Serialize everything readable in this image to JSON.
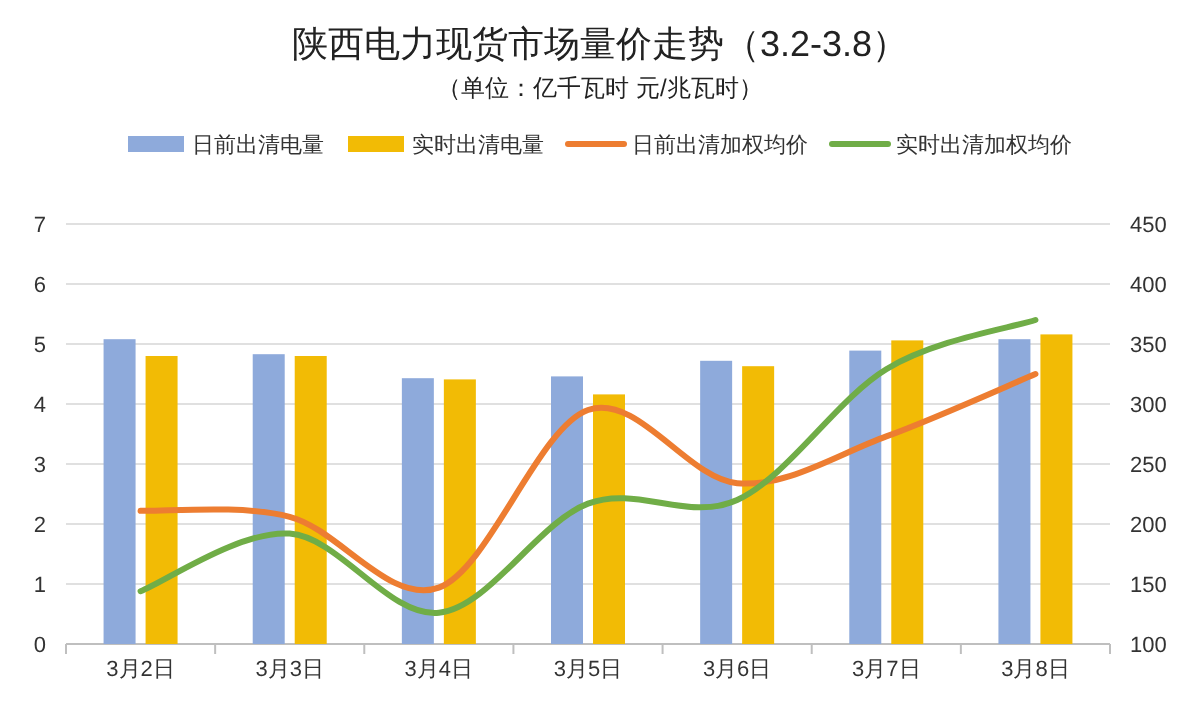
{
  "chart_data": {
    "type": "bar",
    "title": "陕西电力现货市场量价走势（3.2-3.8）",
    "subtitle": "（单位：亿千瓦时 元/兆瓦时）",
    "categories": [
      "3月2日",
      "3月3日",
      "3月4日",
      "3月5日",
      "3月6日",
      "3月7日",
      "3月8日"
    ],
    "series": [
      {
        "name": "日前出清电量",
        "color": "#8eaadb",
        "values": [
          5.08,
          4.83,
          4.43,
          4.46,
          4.72,
          4.89,
          5.08
        ]
      },
      {
        "name": "实时出清电量",
        "color": "#f2bb05",
        "values": [
          4.8,
          4.8,
          4.41,
          4.16,
          4.63,
          5.06,
          5.16
        ]
      },
      {
        "name": "日前出清加权均价",
        "type": "line",
        "axis": "y2",
        "color": "#ed7d31",
        "values": [
          211,
          206,
          147,
          295,
          234,
          273,
          325
        ]
      },
      {
        "name": "实时出清加权均价",
        "type": "line",
        "axis": "y2",
        "color": "#70ad47",
        "values": [
          144,
          192,
          126,
          217,
          220,
          329,
          370
        ]
      }
    ],
    "ylim": [
      0,
      7
    ],
    "yticks": [
      0,
      1,
      2,
      3,
      4,
      5,
      6,
      7
    ],
    "y2lim": [
      100,
      450
    ],
    "y2ticks": [
      100,
      150,
      200,
      250,
      300,
      350,
      400,
      450
    ],
    "grid": "y",
    "legend": "top",
    "marker": "none"
  }
}
